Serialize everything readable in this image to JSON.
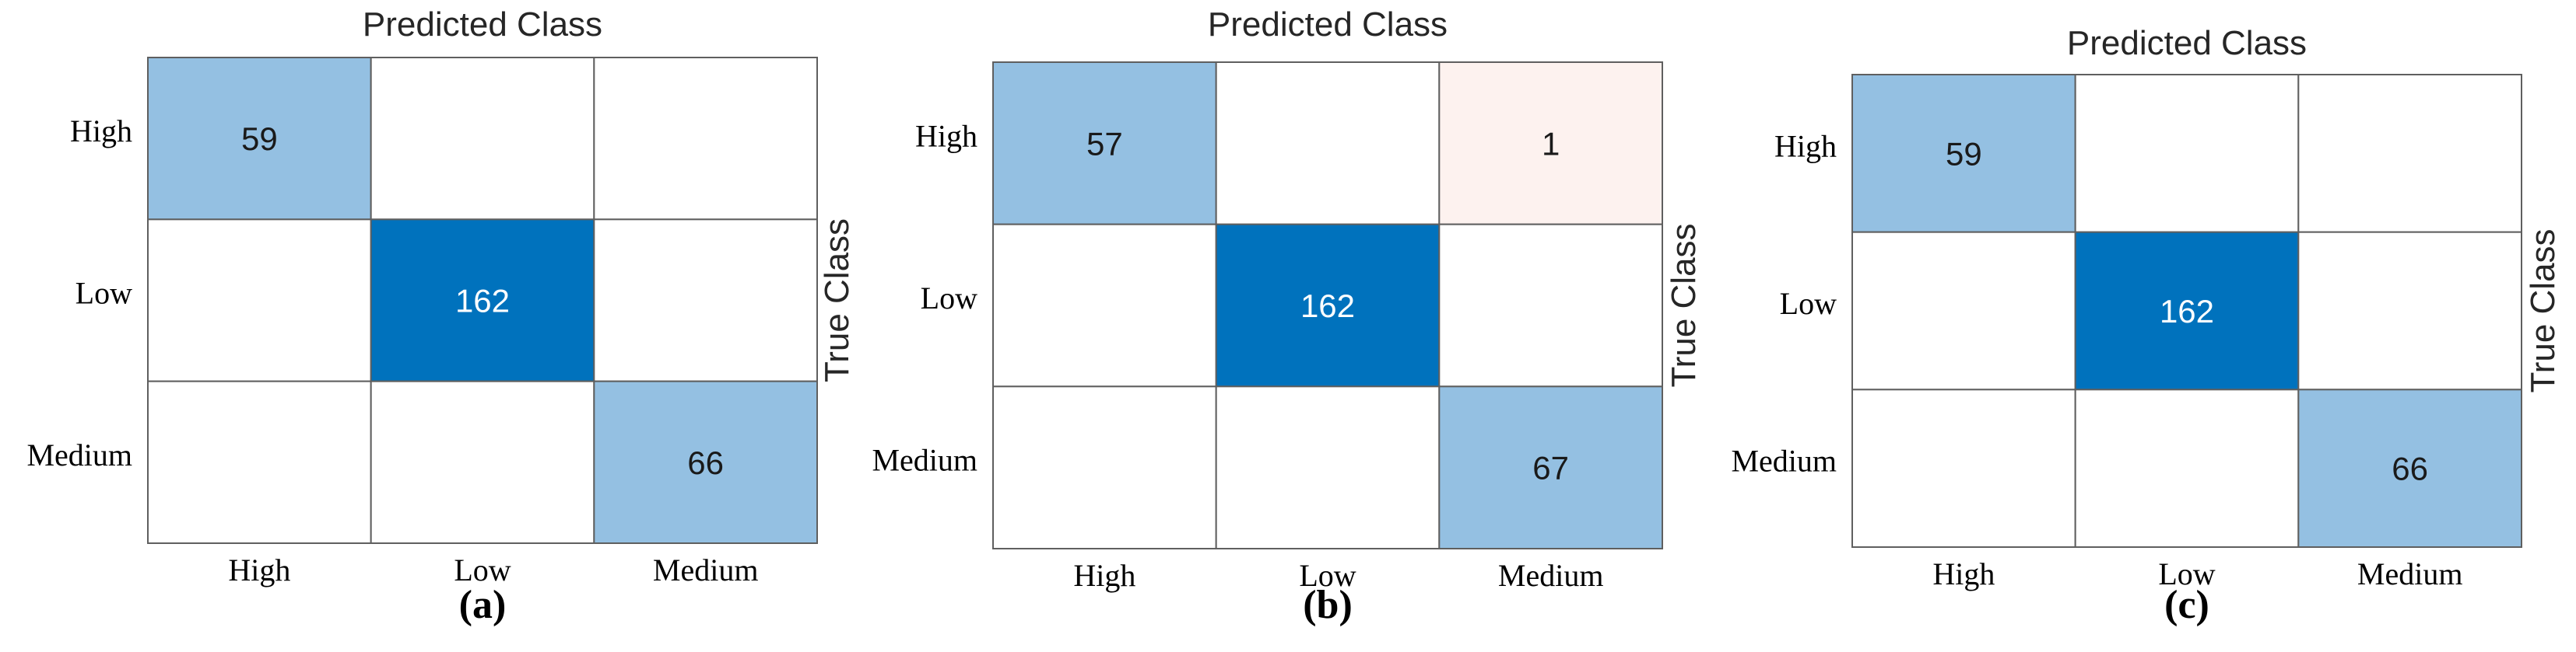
{
  "chart_data": [
    {
      "type": "heatmap",
      "title": "Predicted Class",
      "ylabel": "True Class",
      "x_categories": [
        "High",
        "Low",
        "Medium"
      ],
      "y_categories": [
        "High",
        "Low",
        "Medium"
      ],
      "matrix": [
        [
          59,
          null,
          null
        ],
        [
          null,
          162,
          null
        ],
        [
          null,
          null,
          66
        ]
      ],
      "caption": "(a)"
    },
    {
      "type": "heatmap",
      "title": "Predicted Class",
      "ylabel": "True Class",
      "x_categories": [
        "High",
        "Low",
        "Medium"
      ],
      "y_categories": [
        "High",
        "Low",
        "Medium"
      ],
      "matrix": [
        [
          57,
          null,
          1
        ],
        [
          null,
          162,
          null
        ],
        [
          null,
          null,
          67
        ]
      ],
      "caption": "(b)"
    },
    {
      "type": "heatmap",
      "title": "Predicted Class",
      "ylabel": "True Class",
      "x_categories": [
        "High",
        "Low",
        "Medium"
      ],
      "y_categories": [
        "High",
        "Low",
        "Medium"
      ],
      "matrix": [
        [
          59,
          null,
          null
        ],
        [
          null,
          162,
          null
        ],
        [
          null,
          null,
          66
        ]
      ],
      "caption": "(c)"
    }
  ],
  "colors": {
    "max": "#0072bd",
    "mid": "#94c0e2",
    "off_diagonal": "#fdf2ef",
    "empty": "#ffffff",
    "grid": "#5f5f5f",
    "text_dark": "#1a1a1a",
    "text_light": "#ffffff"
  }
}
